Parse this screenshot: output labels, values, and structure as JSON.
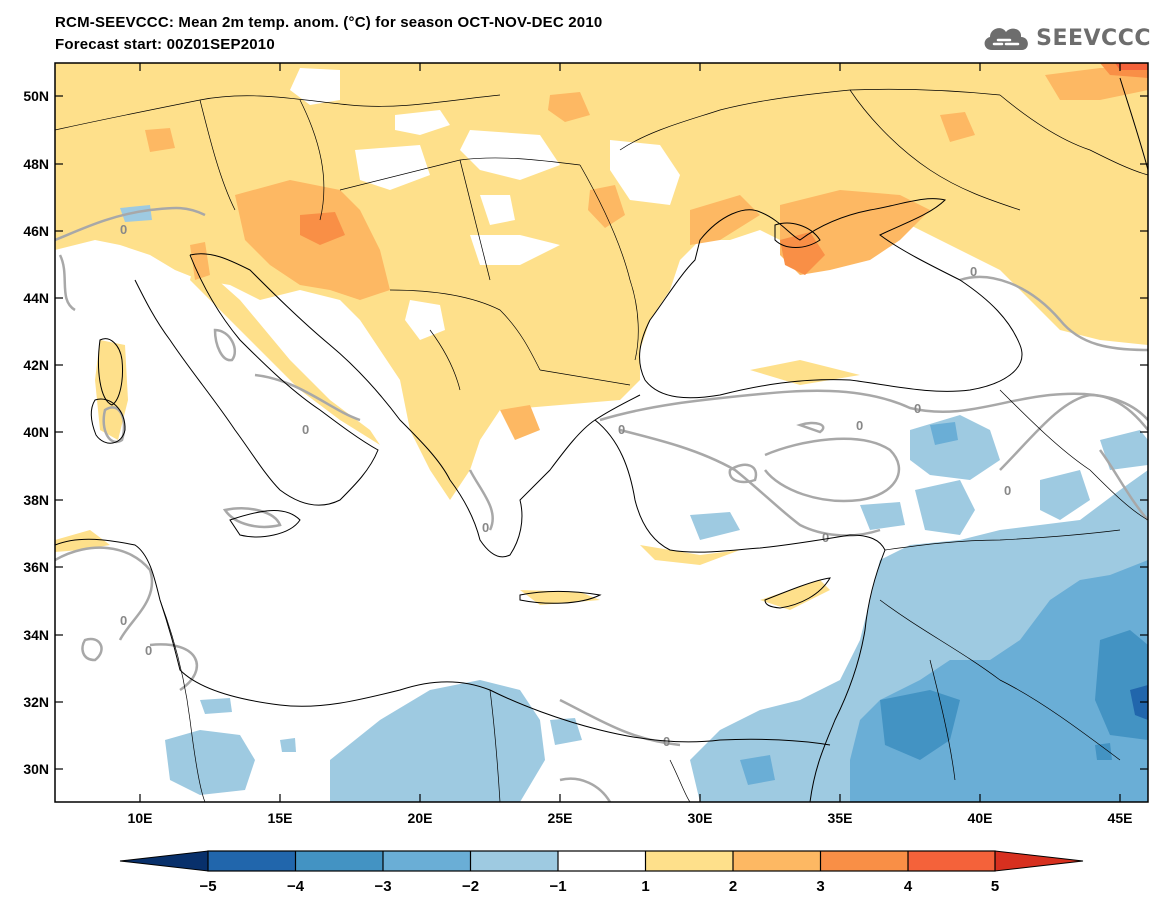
{
  "header": {
    "title": "RCM-SEEVCCC: Mean 2m temp. anom. (°C) for season OCT-NOV-DEC 2010",
    "subtitle": "Forecast start: 00Z01SEP2010",
    "logo_text": "SEEVCCC"
  },
  "map": {
    "lon_range": [
      7,
      46
    ],
    "lat_range": [
      29,
      51
    ],
    "lon_ticks": [
      "10E",
      "15E",
      "20E",
      "25E",
      "30E",
      "35E",
      "40E",
      "45E"
    ],
    "lat_ticks": [
      "50N",
      "48N",
      "46N",
      "44N",
      "42N",
      "40N",
      "38N",
      "36N",
      "34N",
      "32N",
      "30N"
    ],
    "contour_label": "0"
  },
  "colorbar": {
    "ticks": [
      "−5",
      "−4",
      "−3",
      "−2",
      "−1",
      "1",
      "2",
      "3",
      "4",
      "5"
    ],
    "colors": [
      "#2166ac",
      "#4393c3",
      "#6aaed6",
      "#9ecae1",
      "#ffffff",
      "#fee08b",
      "#fdb863",
      "#f98f46",
      "#f4623a",
      "#d7301f",
      "#08306b"
    ]
  }
}
